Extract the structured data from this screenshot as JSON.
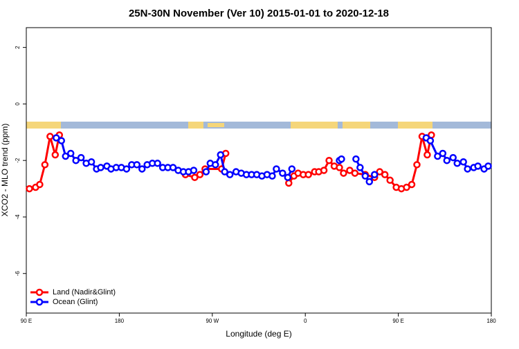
{
  "chart_data": {
    "type": "line",
    "title": "25N-30N November (Ver 10)   2015-01-01 to 2020-12-18",
    "x_label": "Longitude (deg E)",
    "y_label": "XCO2 - MLO trend (ppm)",
    "xlim": [
      90,
      540
    ],
    "xticks": [
      {
        "value": 90,
        "label": "90 E"
      },
      {
        "value": 180,
        "label": "180"
      },
      {
        "value": 270,
        "label": "90 W"
      },
      {
        "value": 360,
        "label": "0"
      },
      {
        "value": 450,
        "label": "90 E"
      },
      {
        "value": 540,
        "label": "180"
      }
    ],
    "ylim": [
      -7.4,
      2.7
    ],
    "yticks": [
      -6,
      -4,
      -2,
      0,
      2
    ],
    "legend": "bottom-left",
    "series": [
      {
        "name": "Land (Nadir&Glint)",
        "color": "#ff0000",
        "x": [
          93,
          99,
          103,
          108,
          113,
          118,
          122,
          180,
          244,
          253,
          258,
          263,
          279,
          283,
          300,
          344,
          349,
          353,
          358,
          363,
          369,
          373,
          378,
          383,
          388,
          393,
          397,
          403,
          408,
          418,
          427,
          432,
          437,
          442,
          448,
          453,
          458,
          463,
          468,
          473,
          478,
          482
        ],
        "values": [
          -3.0,
          -2.95,
          -2.85,
          -2.15,
          -1.15,
          -1.8,
          -1.1,
          null,
          -2.5,
          -2.6,
          -2.5,
          -2.3,
          -2.3,
          -1.75,
          null,
          -2.8,
          -2.55,
          -2.45,
          -2.5,
          -2.5,
          -2.4,
          -2.4,
          -2.35,
          -2.0,
          -2.2,
          -2.25,
          -2.45,
          -2.35,
          -2.45,
          -2.5,
          -2.6,
          -2.4,
          -2.5,
          -2.7,
          -2.95,
          -3.0,
          -2.95,
          -2.85,
          -2.15,
          -1.15,
          -1.8,
          -1.1
        ]
      },
      {
        "name": "Ocean (Glint)",
        "color": "#0000ff",
        "x": [
          119,
          124,
          128,
          133,
          138,
          143,
          148,
          153,
          158,
          162,
          168,
          172,
          177,
          182,
          187,
          192,
          197,
          202,
          207,
          212,
          217,
          222,
          227,
          232,
          237,
          242,
          247,
          252,
          258,
          264,
          268,
          273,
          278,
          282,
          287,
          293,
          298,
          303,
          308,
          313,
          318,
          323,
          328,
          332,
          338,
          343,
          347,
          370,
          393,
          395,
          402,
          409,
          413,
          418,
          422,
          427,
          450,
          477,
          481,
          488,
          493,
          497,
          503,
          507,
          513,
          517,
          523,
          527,
          533,
          537
        ],
        "values": [
          -1.2,
          -1.3,
          -1.85,
          -1.75,
          -2.0,
          -1.9,
          -2.1,
          -2.05,
          -2.3,
          -2.25,
          -2.2,
          -2.3,
          -2.25,
          -2.25,
          -2.3,
          -2.15,
          -2.15,
          -2.3,
          -2.15,
          -2.1,
          -2.1,
          -2.25,
          -2.25,
          -2.25,
          -2.35,
          -2.4,
          -2.4,
          -2.35,
          null,
          -2.4,
          -2.1,
          -2.15,
          -1.8,
          -2.4,
          -2.5,
          -2.4,
          -2.45,
          -2.5,
          -2.5,
          -2.5,
          -2.55,
          -2.5,
          -2.55,
          -2.3,
          -2.45,
          -2.6,
          -2.3,
          null,
          -2.0,
          -1.95,
          null,
          -1.95,
          -2.25,
          -2.55,
          -2.75,
          -2.5,
          null,
          -1.2,
          -1.3,
          -1.85,
          -1.75,
          -2.0,
          -1.9,
          -2.1,
          -2.05,
          -2.3,
          -2.25,
          -2.2,
          -2.3,
          -2.2
        ]
      }
    ]
  }
}
